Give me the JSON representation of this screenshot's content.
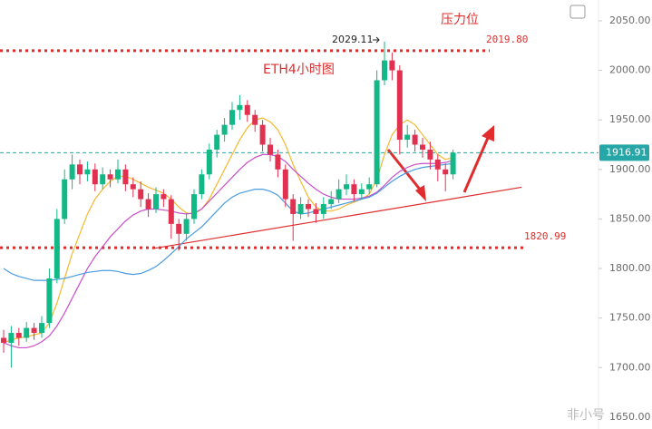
{
  "chart_data": {
    "type": "candlestick",
    "title": "ETH4小时图",
    "annotations": [
      {
        "text": "压力位"
      },
      {
        "text": "2029.11"
      }
    ],
    "watermark": "非小号",
    "ylim": [
      1638,
      2071
    ],
    "yticks": [
      {
        "value": 1650,
        "label": "1650.00"
      },
      {
        "value": 1700,
        "label": "1700.00"
      },
      {
        "value": 1750,
        "label": "1750.00"
      },
      {
        "value": 1800,
        "label": "1800.00"
      },
      {
        "value": 1850,
        "label": "1850.00"
      },
      {
        "value": 1900,
        "label": "1900.00"
      },
      {
        "value": 1950,
        "label": "1950.00"
      },
      {
        "value": 2000,
        "label": "2000.00"
      },
      {
        "value": 2050,
        "label": "2050.00"
      }
    ],
    "up_color": "#12b886",
    "down_color": "#e03150",
    "candles": [
      [
        1730,
        1738,
        1715,
        1725
      ],
      [
        1725,
        1742,
        1700,
        1735
      ],
      [
        1735,
        1740,
        1722,
        1730
      ],
      [
        1730,
        1746,
        1726,
        1740
      ],
      [
        1740,
        1745,
        1728,
        1735
      ],
      [
        1735,
        1752,
        1730,
        1745
      ],
      [
        1745,
        1800,
        1740,
        1790
      ],
      [
        1790,
        1860,
        1785,
        1850
      ],
      [
        1850,
        1900,
        1845,
        1890
      ],
      [
        1890,
        1915,
        1880,
        1905
      ],
      [
        1905,
        1910,
        1885,
        1895
      ],
      [
        1895,
        1908,
        1888,
        1900
      ],
      [
        1900,
        1906,
        1878,
        1885
      ],
      [
        1885,
        1902,
        1880,
        1895
      ],
      [
        1895,
        1900,
        1882,
        1890
      ],
      [
        1890,
        1910,
        1886,
        1900
      ],
      [
        1900,
        1905,
        1878,
        1885
      ],
      [
        1885,
        1892,
        1872,
        1880
      ],
      [
        1880,
        1888,
        1862,
        1870
      ],
      [
        1870,
        1876,
        1852,
        1860
      ],
      [
        1860,
        1882,
        1856,
        1875
      ],
      [
        1875,
        1880,
        1862,
        1870
      ],
      [
        1870,
        1874,
        1830,
        1845
      ],
      [
        1845,
        1850,
        1818,
        1835
      ],
      [
        1835,
        1856,
        1828,
        1850
      ],
      [
        1850,
        1880,
        1845,
        1875
      ],
      [
        1875,
        1900,
        1870,
        1895
      ],
      [
        1895,
        1926,
        1890,
        1920
      ],
      [
        1920,
        1940,
        1912,
        1935
      ],
      [
        1935,
        1952,
        1928,
        1945
      ],
      [
        1945,
        1968,
        1940,
        1960
      ],
      [
        1960,
        1975,
        1950,
        1965
      ],
      [
        1965,
        1970,
        1948,
        1955
      ],
      [
        1955,
        1960,
        1938,
        1945
      ],
      [
        1945,
        1950,
        1918,
        1925
      ],
      [
        1925,
        1932,
        1908,
        1915
      ],
      [
        1915,
        1920,
        1892,
        1900
      ],
      [
        1900,
        1905,
        1862,
        1870
      ],
      [
        1870,
        1875,
        1828,
        1855
      ],
      [
        1855,
        1872,
        1850,
        1865
      ],
      [
        1865,
        1870,
        1852,
        1860
      ],
      [
        1860,
        1866,
        1846,
        1855
      ],
      [
        1855,
        1872,
        1850,
        1865
      ],
      [
        1865,
        1878,
        1860,
        1870
      ],
      [
        1870,
        1890,
        1866,
        1880
      ],
      [
        1880,
        1895,
        1874,
        1885
      ],
      [
        1885,
        1890,
        1868,
        1875
      ],
      [
        1875,
        1886,
        1870,
        1880
      ],
      [
        1880,
        1892,
        1875,
        1885
      ],
      [
        1885,
        2000,
        1882,
        1990
      ],
      [
        1990,
        2029.11,
        1985,
        2010
      ],
      [
        2010,
        2018,
        1990,
        2000
      ],
      [
        2000,
        2005,
        1915,
        1930
      ],
      [
        1930,
        1945,
        1922,
        1935
      ],
      [
        1935,
        1940,
        1918,
        1925
      ],
      [
        1925,
        1932,
        1912,
        1920
      ],
      [
        1920,
        1928,
        1900,
        1910
      ],
      [
        1910,
        1915,
        1888,
        1900
      ],
      [
        1900,
        1906,
        1878,
        1895
      ],
      [
        1895,
        1920,
        1890,
        1916.91
      ]
    ],
    "moving_averages": [
      {
        "color": "#f5b82e",
        "values": [
          1725,
          1728,
          1730,
          1731,
          1733,
          1735,
          1745,
          1765,
          1790,
          1815,
          1835,
          1855,
          1870,
          1880,
          1888,
          1893,
          1893,
          1890,
          1886,
          1882,
          1879,
          1876,
          1870,
          1862,
          1856,
          1855,
          1860,
          1870,
          1885,
          1900,
          1915,
          1930,
          1942,
          1950,
          1952,
          1948,
          1940,
          1925,
          1905,
          1888,
          1872,
          1862,
          1858,
          1858,
          1860,
          1864,
          1867,
          1870,
          1875,
          1890,
          1915,
          1935,
          1945,
          1950,
          1945,
          1935,
          1925,
          1915,
          1910,
          1912
        ]
      },
      {
        "color": "#c94fc9",
        "values": [
          1725,
          1722,
          1720,
          1720,
          1722,
          1726,
          1732,
          1742,
          1755,
          1770,
          1785,
          1800,
          1812,
          1822,
          1832,
          1840,
          1848,
          1854,
          1858,
          1860,
          1860,
          1859,
          1858,
          1856,
          1855,
          1856,
          1860,
          1868,
          1876,
          1884,
          1892,
          1900,
          1907,
          1912,
          1915,
          1915,
          1913,
          1908,
          1900,
          1893,
          1886,
          1880,
          1875,
          1872,
          1870,
          1870,
          1870,
          1871,
          1873,
          1877,
          1884,
          1892,
          1898,
          1902,
          1905,
          1906,
          1906,
          1906,
          1907,
          1909
        ]
      },
      {
        "color": "#4a9be0",
        "values": [
          1800,
          1795,
          1792,
          1790,
          1788,
          1788,
          1788,
          1789,
          1790,
          1792,
          1794,
          1796,
          1797,
          1798,
          1798,
          1797,
          1795,
          1794,
          1795,
          1798,
          1802,
          1808,
          1815,
          1822,
          1830,
          1836,
          1842,
          1850,
          1858,
          1866,
          1872,
          1876,
          1878,
          1880,
          1880,
          1878,
          1874,
          1866,
          1858,
          1855,
          1856,
          1858,
          1860,
          1862,
          1864,
          1866,
          1868,
          1870,
          1872,
          1876,
          1882,
          1888,
          1893,
          1897,
          1900,
          1902,
          1903,
          1904,
          1905,
          1906
        ]
      }
    ],
    "levels": [
      {
        "value": 2019.8,
        "label": "2019.80",
        "color": "#e02c2c"
      },
      {
        "value": 1820.99,
        "label": "1820.99",
        "color": "#e02c2c"
      }
    ],
    "last_price": {
      "value": 1916.91,
      "label": "1916.91",
      "color": "#26a6a6"
    },
    "trendline": {
      "x": [
        19.5,
        68
      ],
      "y": [
        1820,
        1882
      ],
      "color": "#e02c2c"
    }
  }
}
